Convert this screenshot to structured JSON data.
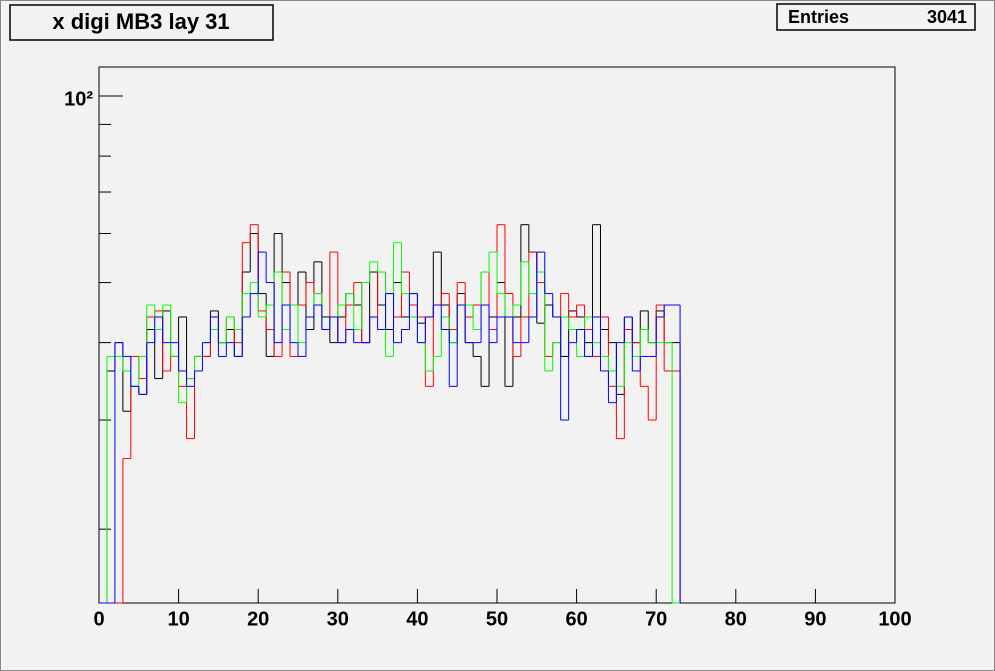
{
  "chart_data": {
    "type": "histogram",
    "title": "x digi MB3 lay 31",
    "stats": {
      "label": "Entries",
      "value": "3041"
    },
    "log_y": true,
    "xlim": [
      0,
      100
    ],
    "xticks": [
      0,
      10,
      20,
      30,
      40,
      50,
      60,
      70,
      80,
      90,
      100
    ],
    "ylim": [
      15.2,
      111.4
    ],
    "yticks": [
      {
        "value": 100,
        "label": "10²"
      }
    ],
    "yminor": [
      20,
      30,
      40,
      50,
      60,
      70,
      80,
      90
    ],
    "bins": [
      0,
      1,
      2,
      3,
      4,
      5,
      6,
      7,
      8,
      9,
      10,
      11,
      12,
      13,
      14,
      15,
      16,
      17,
      18,
      19,
      20,
      21,
      22,
      23,
      24,
      25,
      26,
      27,
      28,
      29,
      30,
      31,
      32,
      33,
      34,
      35,
      36,
      37,
      38,
      39,
      40,
      41,
      42,
      43,
      44,
      45,
      46,
      47,
      48,
      49,
      50,
      51,
      52,
      53,
      54,
      55,
      56,
      57,
      58,
      59,
      60,
      61,
      62,
      63,
      64,
      65,
      66,
      67,
      68,
      69,
      70,
      71,
      72,
      73
    ],
    "series": [
      {
        "color": "#000000",
        "values": [
          0,
          36,
          40,
          31,
          34,
          33,
          42,
          35,
          45,
          38,
          44,
          35,
          38,
          38,
          45,
          40,
          42,
          38,
          52,
          60,
          48,
          38,
          60,
          50,
          46,
          52,
          42,
          54,
          44,
          40,
          44,
          48,
          46,
          40,
          52,
          46,
          42,
          50,
          44,
          48,
          43,
          44,
          56,
          46,
          40,
          48,
          40,
          38,
          34,
          44,
          50,
          34,
          44,
          62,
          56,
          43,
          46,
          44,
          38,
          45,
          44,
          40,
          62,
          42,
          40,
          33,
          44,
          40,
          45,
          40,
          45,
          40,
          40
        ]
      },
      {
        "color": "#ff0000",
        "values": [
          0,
          0,
          0,
          26,
          38,
          35,
          44,
          45,
          36,
          38,
          34,
          28,
          38,
          38,
          44,
          40,
          44,
          40,
          58,
          62,
          45,
          42,
          38,
          52,
          38,
          46,
          50,
          48,
          42,
          56,
          40,
          46,
          50,
          40,
          44,
          52,
          48,
          44,
          52,
          46,
          44,
          34,
          46,
          48,
          42,
          50,
          44,
          46,
          52,
          42,
          62,
          48,
          38,
          44,
          56,
          50,
          38,
          40,
          48,
          44,
          46,
          42,
          38,
          44,
          34,
          28,
          42,
          40,
          34,
          30,
          46,
          36,
          36
        ]
      },
      {
        "color": "#00ff00",
        "values": [
          0,
          38,
          38,
          36,
          34,
          38,
          46,
          42,
          46,
          38,
          32,
          35,
          38,
          40,
          42,
          40,
          44,
          42,
          48,
          50,
          44,
          46,
          52,
          42,
          46,
          40,
          44,
          48,
          42,
          44,
          46,
          48,
          42,
          50,
          54,
          52,
          38,
          58,
          48,
          44,
          40,
          36,
          38,
          44,
          40,
          46,
          46,
          42,
          52,
          56,
          48,
          44,
          46,
          54,
          48,
          52,
          36,
          40,
          44,
          42,
          38,
          44,
          40,
          38,
          36,
          34,
          40,
          38,
          42,
          40,
          40,
          40,
          0
        ]
      },
      {
        "color": "#0000ff",
        "values": [
          0,
          0,
          40,
          38,
          34,
          33,
          40,
          44,
          40,
          40,
          36,
          34,
          36,
          40,
          44,
          38,
          40,
          38,
          44,
          48,
          56,
          50,
          40,
          46,
          40,
          38,
          44,
          46,
          42,
          44,
          40,
          42,
          40,
          40,
          44,
          42,
          48,
          40,
          42,
          48,
          40,
          44,
          46,
          42,
          34,
          46,
          40,
          40,
          46,
          40,
          44,
          44,
          40,
          40,
          44,
          56,
          48,
          44,
          30,
          40,
          42,
          38,
          44,
          36,
          32,
          40,
          44,
          36,
          38,
          38,
          44,
          46,
          46
        ]
      }
    ]
  }
}
